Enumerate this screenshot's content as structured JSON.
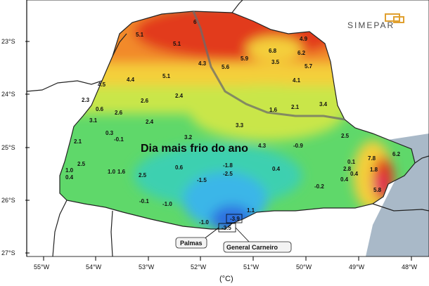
{
  "map": {
    "title": "Dia mais frio do ano",
    "unit": "(°C)",
    "logo": "SIMEPAR",
    "lon_ticks": [
      "55°W",
      "54°W",
      "53°W",
      "52°W",
      "51°W",
      "50°W",
      "49°W",
      "48°W"
    ],
    "lat_ticks": [
      "23°S",
      "24°S",
      "25°S",
      "26°S",
      "27°S"
    ],
    "colors": {
      "ocean": "#a9b9c8",
      "warm_red": "#e23a1a",
      "orange": "#f28a2c",
      "yellow": "#f4cf3b",
      "light_green": "#c9e64a",
      "green": "#5fd86a",
      "teal": "#3ed0b0",
      "cyan": "#3ab6e8",
      "blue": "#2f6fe0",
      "magenta": "#e01a6a"
    },
    "places": [
      {
        "name": "Palmas"
      },
      {
        "name": "General Carneiro"
      }
    ],
    "values": [
      "5.1",
      "5.1",
      "6",
      "4.3",
      "5.6",
      "5.9",
      "6.8",
      "4.9",
      "6.2",
      "3.5",
      "5.7",
      "4.5",
      "4.4",
      "5.1",
      "4.1",
      "2.3",
      "2.4",
      "2.6",
      "1.6",
      "2.1",
      "3.4",
      "0.6",
      "2.6",
      "3.1",
      "2.4",
      "3.3",
      "0.3",
      "-0.1",
      "3.2",
      "4.3",
      "-0.9",
      "2.5",
      "2.1",
      "1.0",
      "0.4",
      "2.5",
      "1.0",
      "1.6",
      "2.5",
      "0.6",
      "-1.8",
      "-2.5",
      "0.4",
      "-1.5",
      "-0.2",
      "0.4",
      "-0.1",
      "-1.0",
      "-1.0",
      "1.1",
      "-3.9",
      "-3.5",
      "7.8",
      "6.2",
      "0.1",
      "2.8",
      "1.8",
      "0.4",
      "5.8"
    ]
  }
}
